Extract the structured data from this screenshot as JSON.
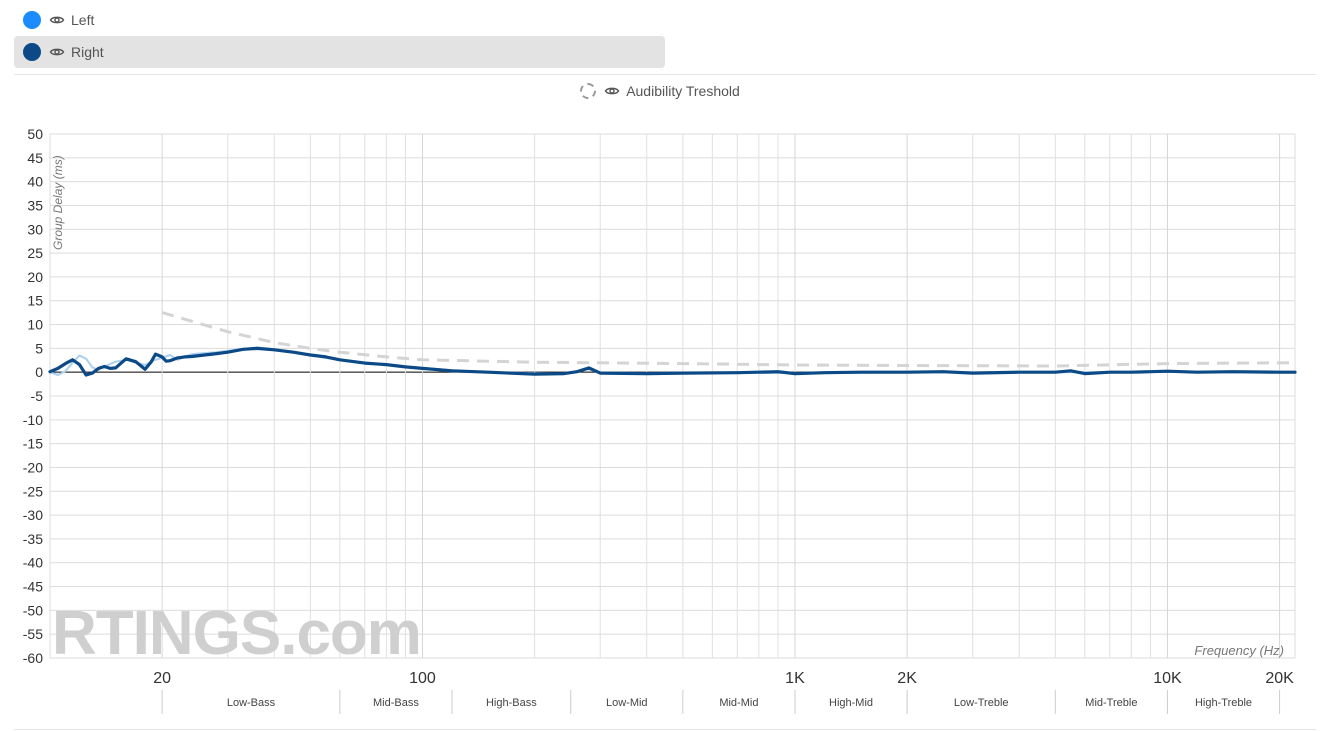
{
  "legend": {
    "items": [
      {
        "label": "Left",
        "color": "#1a8cff",
        "selected": false
      },
      {
        "label": "Right",
        "color": "#0b4a86",
        "selected": true
      }
    ],
    "threshold": {
      "label": "Audibility Treshold",
      "color": "#cccccc"
    }
  },
  "watermark": "RTINGS.com",
  "chart_data": {
    "type": "line",
    "ylabel": "Group Delay (ms)",
    "xlabel": "Frequency (Hz)",
    "xscale": "log",
    "xlim": [
      10,
      22000
    ],
    "ylim": [
      -60,
      50
    ],
    "grid": true,
    "y_ticks": [
      50,
      45,
      40,
      35,
      30,
      25,
      20,
      15,
      10,
      5,
      0,
      -5,
      -10,
      -15,
      -20,
      -25,
      -30,
      -35,
      -40,
      -45,
      -50,
      -55,
      -60
    ],
    "x_ticks": [
      {
        "value": 20,
        "label": "20"
      },
      {
        "value": 100,
        "label": "100"
      },
      {
        "value": 1000,
        "label": "1K"
      },
      {
        "value": 2000,
        "label": "2K"
      },
      {
        "value": 10000,
        "label": "10K"
      },
      {
        "value": 20000,
        "label": "20K"
      }
    ],
    "minor_x_gridlines": [
      30,
      40,
      50,
      60,
      70,
      80,
      90,
      200,
      300,
      400,
      500,
      600,
      700,
      800,
      900,
      3000,
      4000,
      5000,
      6000,
      7000,
      8000,
      9000
    ],
    "bands": [
      {
        "label": "Low-Bass",
        "from": 20,
        "to": 60
      },
      {
        "label": "Mid-Bass",
        "from": 60,
        "to": 120
      },
      {
        "label": "High-Bass",
        "from": 120,
        "to": 250
      },
      {
        "label": "Low-Mid",
        "from": 250,
        "to": 500
      },
      {
        "label": "Mid-Mid",
        "from": 500,
        "to": 1000
      },
      {
        "label": "High-Mid",
        "from": 1000,
        "to": 2000
      },
      {
        "label": "Low-Treble",
        "from": 2000,
        "to": 5000
      },
      {
        "label": "Mid-Treble",
        "from": 5000,
        "to": 10000
      },
      {
        "label": "High-Treble",
        "from": 10000,
        "to": 20000
      }
    ],
    "series": [
      {
        "name": "Left",
        "color": "#a9d0ee",
        "x": [
          10,
          10.5,
          11,
          11.5,
          12,
          12.5,
          13,
          13.5,
          14,
          15,
          16,
          17,
          18,
          19,
          20,
          21,
          22,
          23,
          24,
          26,
          28,
          30,
          33,
          36,
          40,
          45,
          50,
          55,
          60,
          70,
          80,
          90,
          100,
          120,
          150,
          200,
          240,
          260,
          280,
          300,
          400,
          500,
          700,
          1000,
          1500,
          2000,
          3000,
          5000,
          7000,
          10000,
          15000,
          22000
        ],
        "y": [
          0,
          -0.6,
          0.2,
          2.0,
          3.5,
          2.8,
          1.0,
          0.5,
          1.2,
          2.2,
          2.6,
          2.0,
          1.5,
          2.5,
          3.0,
          3.6,
          2.6,
          3.2,
          3.8,
          4.0,
          4.2,
          4.5,
          4.8,
          5.2,
          4.8,
          4.2,
          3.6,
          3.0,
          2.6,
          2.0,
          1.6,
          1.2,
          0.9,
          0.4,
          0,
          -0.2,
          -0.3,
          0.2,
          0.6,
          -0.1,
          -0.2,
          -0.2,
          -0.1,
          -0.2,
          -0.1,
          0,
          0,
          0,
          0,
          0.1,
          0,
          0
        ]
      },
      {
        "name": "Right",
        "color": "#0b4a86",
        "x": [
          10,
          10.5,
          11,
          11.5,
          12,
          12.5,
          13,
          13.5,
          14,
          14.5,
          15,
          16,
          17,
          18,
          18.7,
          19.2,
          20,
          20.5,
          21,
          22,
          23,
          24,
          26,
          28,
          30,
          33,
          36,
          40,
          45,
          50,
          55,
          60,
          70,
          80,
          90,
          100,
          120,
          150,
          200,
          240,
          260,
          280,
          300,
          400,
          500,
          700,
          900,
          1000,
          1200,
          1500,
          2000,
          2500,
          3000,
          4000,
          5000,
          5500,
          6000,
          7000,
          8000,
          9000,
          10000,
          12000,
          15000,
          20000,
          22000
        ],
        "y": [
          0.1,
          0.8,
          1.8,
          2.6,
          1.6,
          -0.6,
          -0.2,
          0.8,
          1.2,
          0.8,
          0.9,
          2.8,
          2.2,
          0.6,
          2.2,
          3.8,
          3.2,
          2.3,
          2.4,
          3.0,
          3.2,
          3.3,
          3.6,
          3.9,
          4.2,
          4.8,
          5.0,
          4.7,
          4.2,
          3.6,
          3.2,
          2.6,
          1.9,
          1.6,
          1.1,
          0.8,
          0.3,
          0,
          -0.4,
          -0.3,
          0.1,
          0.9,
          -0.2,
          -0.3,
          -0.2,
          -0.1,
          0.1,
          -0.3,
          -0.1,
          0,
          0,
          0.1,
          -0.2,
          0,
          0,
          0.3,
          -0.3,
          0,
          0,
          0.1,
          0.2,
          0,
          0.1,
          0,
          0
        ]
      },
      {
        "name": "Audibility Treshold",
        "color": "#d4d4d4",
        "dashed": true,
        "x": [
          20,
          30,
          40,
          50,
          60,
          80,
          100,
          200,
          500,
          1000,
          2000,
          5000,
          10000,
          22000
        ],
        "y": [
          12.5,
          8.5,
          6.2,
          5.0,
          4.2,
          3.2,
          2.6,
          2.1,
          1.8,
          1.5,
          1.4,
          1.3,
          1.8,
          2.0
        ]
      }
    ]
  }
}
